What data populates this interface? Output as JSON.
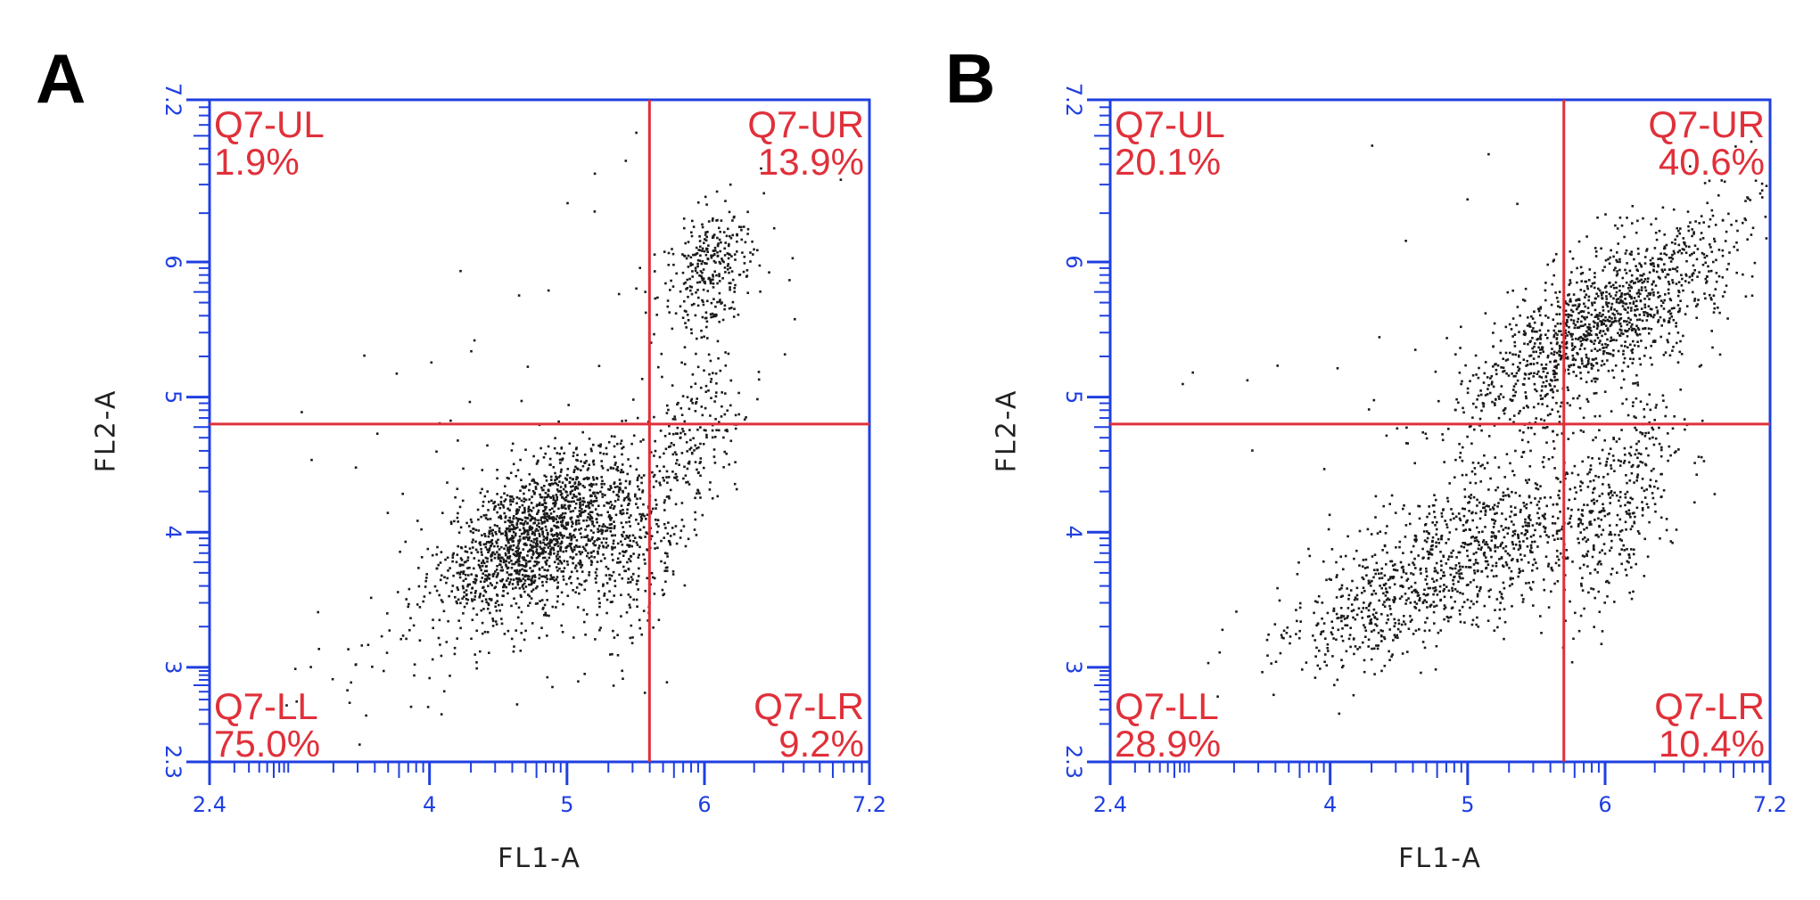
{
  "chart_data": [
    {
      "type": "scatter",
      "panel": "A",
      "xlabel": "FL1-A",
      "ylabel": "FL2-A",
      "xlim": [
        2.4,
        7.2
      ],
      "ylim": [
        2.3,
        7.2
      ],
      "x_ticks": [
        "2.4",
        "4",
        "5",
        "6",
        "7.2"
      ],
      "x_tick_values": [
        2.4,
        4,
        5,
        6,
        7.2
      ],
      "y_ticks": [
        "2.3",
        "3",
        "4",
        "5",
        "6",
        "7.2"
      ],
      "y_tick_values": [
        2.3,
        3,
        4,
        5,
        6,
        7.2
      ],
      "gate": {
        "x": 5.6,
        "y": 4.8
      },
      "quadrants": [
        {
          "name": "Q7-UL",
          "percent": "1.9%",
          "position": "top-left"
        },
        {
          "name": "Q7-UR",
          "percent": "13.9%",
          "position": "top-right"
        },
        {
          "name": "Q7-LL",
          "percent": "75.0%",
          "position": "bottom-left"
        },
        {
          "name": "Q7-LR",
          "percent": "9.2%",
          "position": "bottom-right"
        }
      ],
      "clusters": [
        {
          "cx": 4.8,
          "cy": 4.0,
          "sx": 0.35,
          "sy": 0.3,
          "rho": 0.55,
          "n": 1500
        },
        {
          "cx": 5.45,
          "cy": 3.85,
          "sx": 0.2,
          "sy": 0.35,
          "rho": 0.1,
          "n": 300
        },
        {
          "cx": 5.9,
          "cy": 4.7,
          "sx": 0.2,
          "sy": 0.35,
          "rho": 0.5,
          "n": 220
        },
        {
          "cx": 6.05,
          "cy": 5.95,
          "sx": 0.18,
          "sy": 0.25,
          "rho": 0.3,
          "n": 320
        },
        {
          "cx": 4.3,
          "cy": 3.4,
          "sx": 0.6,
          "sy": 0.45,
          "rho": 0.6,
          "n": 140
        },
        {
          "cx": 4.5,
          "cy": 5.0,
          "sx": 1.0,
          "sy": 0.9,
          "rho": 0.0,
          "n": 45
        }
      ]
    },
    {
      "type": "scatter",
      "panel": "B",
      "xlabel": "FL1-A",
      "ylabel": "FL2-A",
      "xlim": [
        2.4,
        7.2
      ],
      "ylim": [
        2.3,
        7.2
      ],
      "x_ticks": [
        "2.4",
        "4",
        "5",
        "6",
        "7.2"
      ],
      "x_tick_values": [
        2.4,
        4,
        5,
        6,
        7.2
      ],
      "y_ticks": [
        "2.3",
        "3",
        "4",
        "5",
        "6",
        "7.2"
      ],
      "y_tick_values": [
        2.3,
        3,
        4,
        5,
        6,
        7.2
      ],
      "gate": {
        "x": 5.7,
        "y": 4.8
      },
      "quadrants": [
        {
          "name": "Q7-UL",
          "percent": "20.1%",
          "position": "top-left"
        },
        {
          "name": "Q7-UR",
          "percent": "40.6%",
          "position": "top-right"
        },
        {
          "name": "Q7-LL",
          "percent": "28.9%",
          "position": "bottom-left"
        },
        {
          "name": "Q7-LR",
          "percent": "10.4%",
          "position": "bottom-right"
        }
      ],
      "clusters": [
        {
          "cx": 5.95,
          "cy": 5.55,
          "sx": 0.5,
          "sy": 0.4,
          "rho": 0.75,
          "n": 1300
        },
        {
          "cx": 5.0,
          "cy": 3.85,
          "sx": 0.55,
          "sy": 0.35,
          "rho": 0.6,
          "n": 900
        },
        {
          "cx": 6.1,
          "cy": 4.2,
          "sx": 0.25,
          "sy": 0.45,
          "rho": 0.6,
          "n": 350
        },
        {
          "cx": 4.2,
          "cy": 3.35,
          "sx": 0.35,
          "sy": 0.2,
          "rho": 0.5,
          "n": 200
        },
        {
          "cx": 4.8,
          "cy": 5.0,
          "sx": 0.9,
          "sy": 0.9,
          "rho": 0.0,
          "n": 40
        }
      ]
    }
  ]
}
